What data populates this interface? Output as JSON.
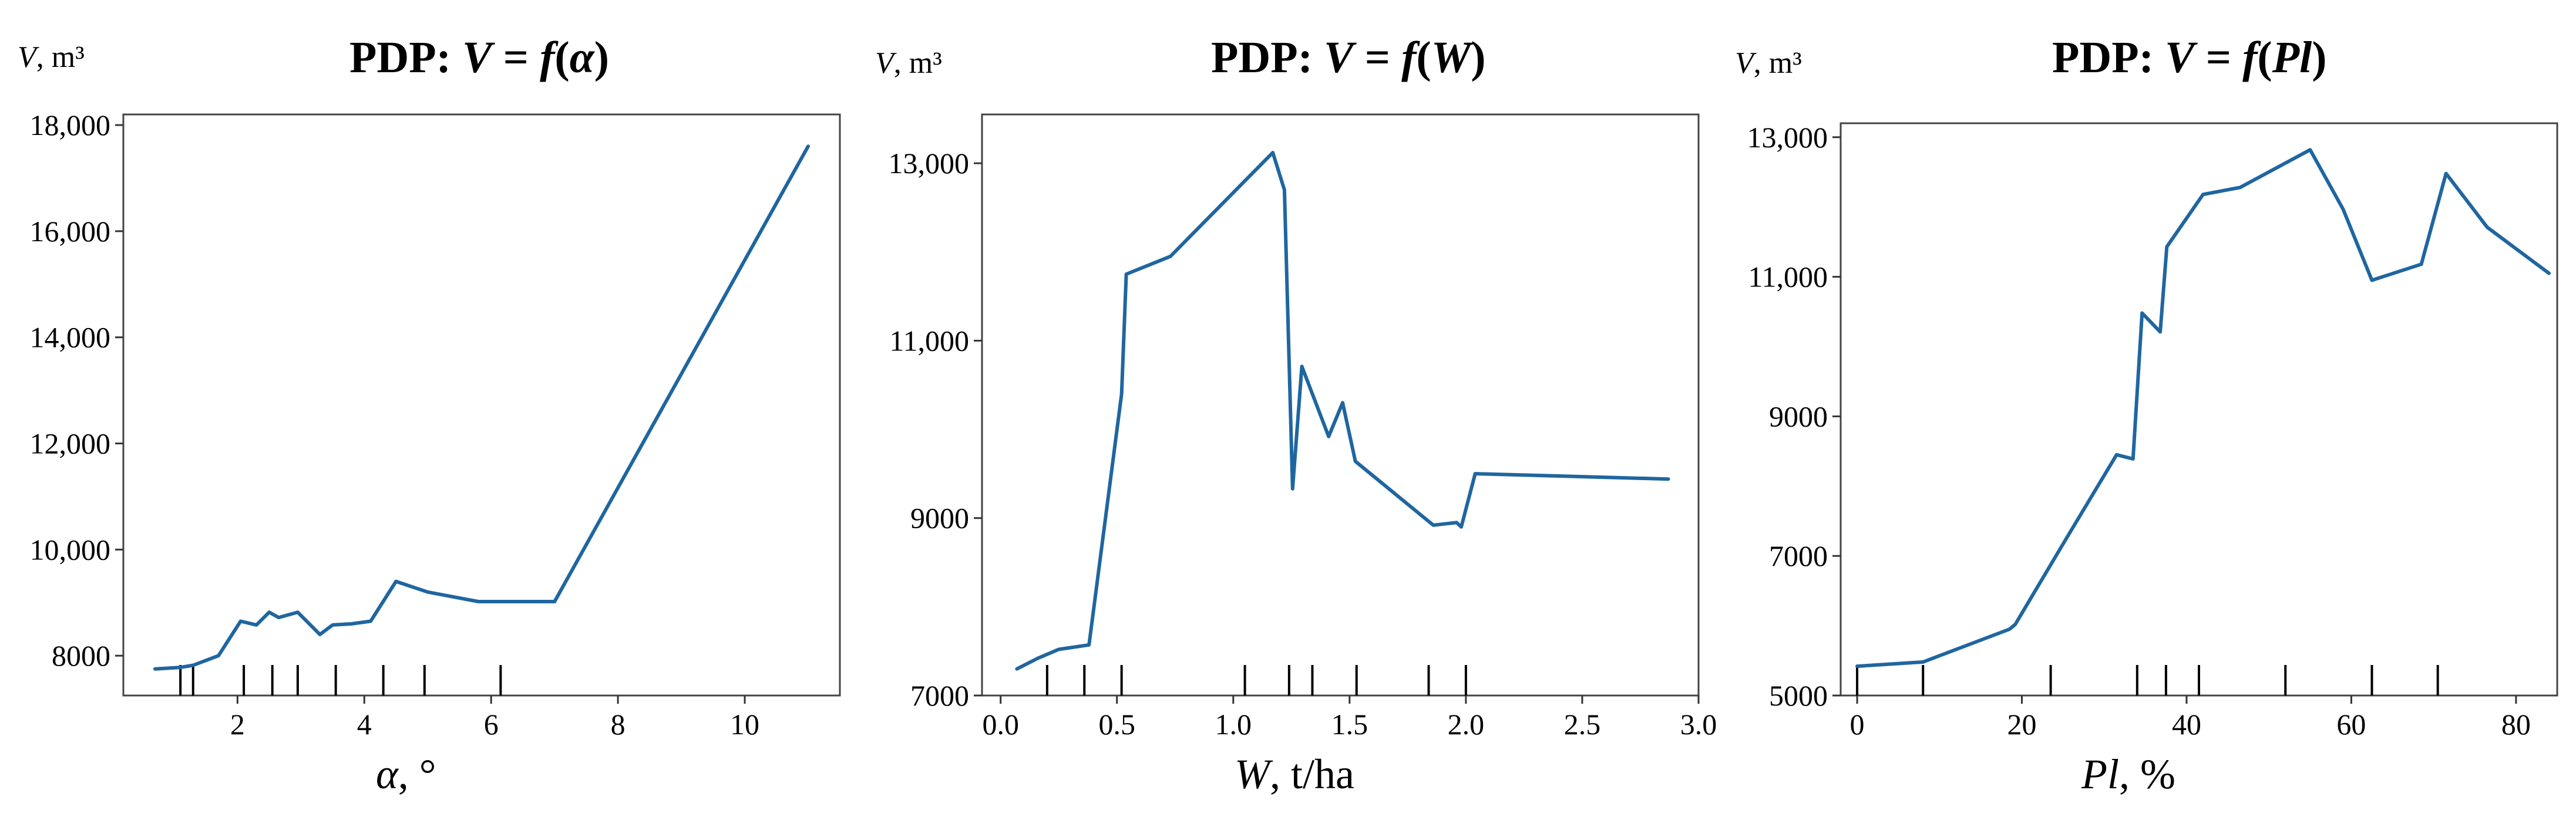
{
  "chart_data": [
    {
      "type": "line",
      "title": {
        "prefix": "PDP: ",
        "var": "V",
        "mid": " = ",
        "fn": "f",
        "open": "(",
        "arg": "α",
        "close": ")"
      },
      "ylabel": {
        "var": "V",
        "unit": ", m³"
      },
      "xlabel": {
        "var": "α",
        "unit": ", °"
      },
      "xlim": [
        0.2,
        11.5
      ],
      "ylim": [
        7250,
        18200
      ],
      "xticks": [
        2,
        4,
        6,
        8,
        10
      ],
      "xtick_labels": [
        "2",
        "4",
        "6",
        "8",
        "10"
      ],
      "yticks": [
        8000,
        10000,
        12000,
        14000,
        16000,
        18000
      ],
      "ytick_labels": [
        "8000",
        "10,000",
        "12,000",
        "14,000",
        "16,000",
        "18,000"
      ],
      "x": [
        0.7,
        1.1,
        1.3,
        1.7,
        2.05,
        2.3,
        2.5,
        2.65,
        2.95,
        3.3,
        3.5,
        3.8,
        4.1,
        4.5,
        5.0,
        5.8,
        7.0,
        11.0
      ],
      "y": [
        7750,
        7780,
        7820,
        8000,
        8650,
        8580,
        8820,
        8720,
        8820,
        8400,
        8580,
        8600,
        8650,
        9400,
        9200,
        9020,
        9020,
        17600
      ],
      "rug": [
        1.1,
        1.3,
        2.1,
        2.55,
        2.95,
        3.55,
        4.3,
        4.95,
        6.15
      ],
      "grid": false
    },
    {
      "type": "line",
      "title": {
        "prefix": "PDP: ",
        "var": "V",
        "mid": " = ",
        "fn": "f",
        "open": "(",
        "arg": "W",
        "close": ")"
      },
      "ylabel": {
        "var": "V",
        "unit": ", m³"
      },
      "xlabel": {
        "var": "W",
        "unit": ", t/ha"
      },
      "xlim": [
        -0.08,
        3.0
      ],
      "ylim": [
        7000,
        13550
      ],
      "xticks": [
        0.0,
        0.5,
        1.0,
        1.5,
        2.0,
        2.5,
        3.0
      ],
      "xtick_labels": [
        "0.0",
        "0.5",
        "1.0",
        "1.5",
        "2.0",
        "2.5",
        "3.0"
      ],
      "yticks": [
        7000,
        9000,
        11000,
        13000
      ],
      "ytick_labels": [
        "7000",
        "9000",
        "11,000",
        "13,000"
      ],
      "x": [
        0.07,
        0.16,
        0.25,
        0.38,
        0.52,
        0.54,
        0.73,
        1.17,
        1.22,
        1.255,
        1.295,
        1.41,
        1.47,
        1.525,
        1.86,
        1.96,
        1.98,
        2.04,
        2.87
      ],
      "y": [
        7300,
        7420,
        7520,
        7570,
        10400,
        11750,
        11950,
        13120,
        12700,
        9330,
        10710,
        9920,
        10300,
        9640,
        8920,
        8950,
        8900,
        9500,
        9440
      ],
      "rug": [
        0.2,
        0.36,
        0.52,
        1.05,
        1.24,
        1.34,
        1.53,
        1.84,
        2.0
      ],
      "grid": false
    },
    {
      "type": "line",
      "title": {
        "prefix": "PDP: ",
        "var": "V",
        "mid": " = ",
        "fn": "f",
        "open": "(",
        "arg": "Pl",
        "close": ")"
      },
      "ylabel": {
        "var": "V",
        "unit": ", m³"
      },
      "xlabel": {
        "var": "Pl",
        "unit": ", %"
      },
      "xlim": [
        -2,
        85
      ],
      "ylim": [
        5000,
        13200
      ],
      "xticks": [
        0,
        20,
        40,
        60,
        80
      ],
      "xtick_labels": [
        "0",
        "20",
        "40",
        "60",
        "80"
      ],
      "yticks": [
        5000,
        7000,
        9000,
        11000,
        13000
      ],
      "ytick_labels": [
        "5000",
        "7000",
        "9000",
        "11,000",
        "13,000"
      ],
      "x": [
        0,
        8,
        18.5,
        19.2,
        25.5,
        31.5,
        33.5,
        34.6,
        36.8,
        37.6,
        42,
        46.5,
        55,
        59,
        62.5,
        68.5,
        71.5,
        76.5,
        84
      ],
      "y": [
        5420,
        5480,
        5950,
        6020,
        7270,
        8450,
        8390,
        10480,
        10210,
        11430,
        12180,
        12280,
        12820,
        11970,
        10950,
        11180,
        12480,
        11710,
        11050
      ],
      "rug": [
        0,
        8,
        23.5,
        34,
        37.5,
        41.5,
        52,
        62.5,
        70.5
      ],
      "grid": false
    }
  ]
}
